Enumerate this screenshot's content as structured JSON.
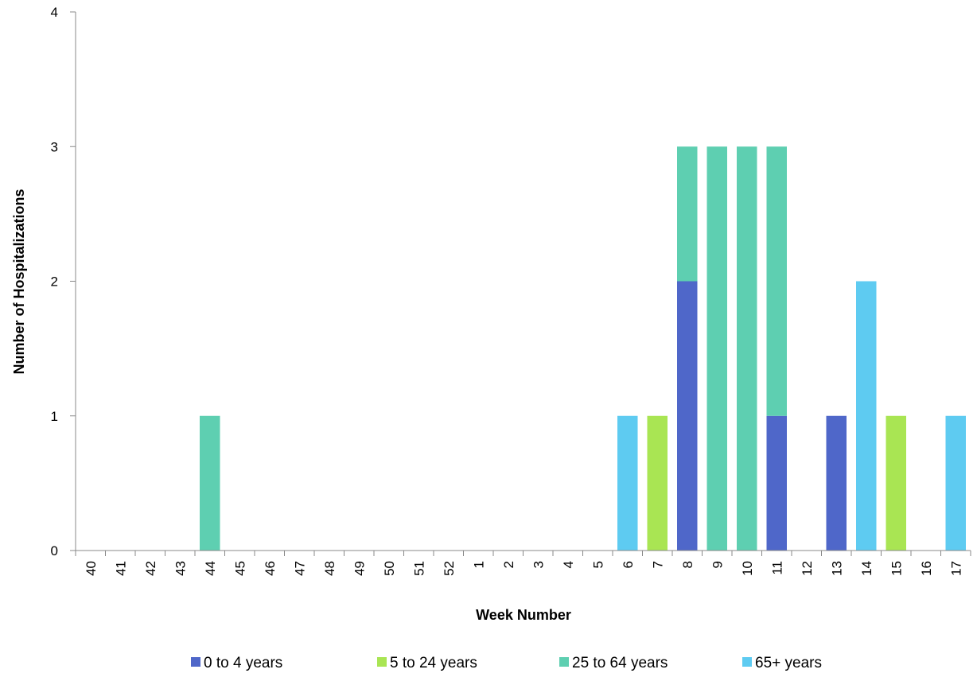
{
  "chart_data": {
    "type": "bar",
    "stacked": true,
    "title": "",
    "xlabel": "Week Number",
    "ylabel": "Number of Hospitalizations",
    "ylim": [
      0,
      4
    ],
    "yticks": [
      "0",
      "1",
      "2",
      "3",
      "4"
    ],
    "grid": false,
    "legend_position": "bottom",
    "categories": [
      "40",
      "41",
      "42",
      "43",
      "44",
      "45",
      "46",
      "47",
      "48",
      "49",
      "50",
      "51",
      "52",
      "1",
      "2",
      "3",
      "4",
      "5",
      "6",
      "7",
      "8",
      "9",
      "10",
      "11",
      "12",
      "13",
      "14",
      "15",
      "16",
      "17"
    ],
    "series": [
      {
        "name": "0 to 4 years",
        "color": "#4f67c9",
        "values": [
          0,
          0,
          0,
          0,
          0,
          0,
          0,
          0,
          0,
          0,
          0,
          0,
          0,
          0,
          0,
          0,
          0,
          0,
          0,
          0,
          2,
          0,
          0,
          1,
          0,
          1,
          0,
          0,
          0,
          0
        ]
      },
      {
        "name": "5 to 24 years",
        "color": "#a9e553",
        "values": [
          0,
          0,
          0,
          0,
          0,
          0,
          0,
          0,
          0,
          0,
          0,
          0,
          0,
          0,
          0,
          0,
          0,
          0,
          0,
          1,
          0,
          0,
          0,
          0,
          0,
          0,
          0,
          1,
          0,
          0
        ]
      },
      {
        "name": "25 to 64 years",
        "color": "#5ecfb1",
        "values": [
          0,
          0,
          0,
          0,
          1,
          0,
          0,
          0,
          0,
          0,
          0,
          0,
          0,
          0,
          0,
          0,
          0,
          0,
          0,
          0,
          1,
          3,
          3,
          2,
          0,
          0,
          0,
          0,
          0,
          0
        ]
      },
      {
        "name": "65+ years",
        "color": "#5ecbf1",
        "values": [
          0,
          0,
          0,
          0,
          0,
          0,
          0,
          0,
          0,
          0,
          0,
          0,
          0,
          0,
          0,
          0,
          0,
          0,
          1,
          0,
          0,
          0,
          0,
          0,
          0,
          0,
          2,
          0,
          0,
          1
        ]
      }
    ]
  }
}
